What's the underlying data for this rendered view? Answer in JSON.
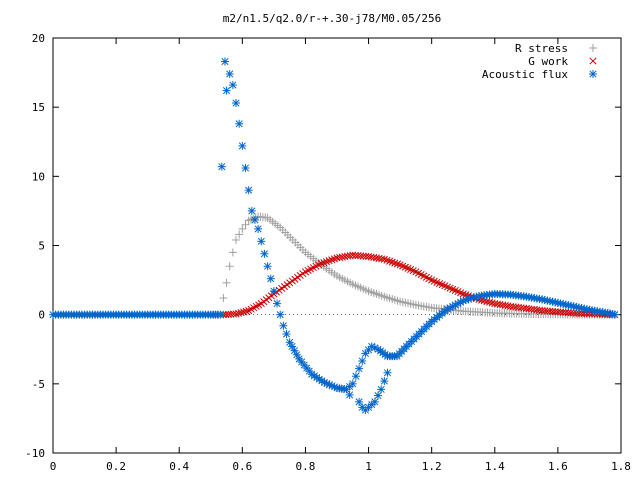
{
  "chart_data": {
    "type": "scatter",
    "title": "m2/n1.5/q2.0/r-+.30-j78/M0.05/256",
    "xlabel": "",
    "ylabel": "",
    "xlim": [
      0,
      1.8
    ],
    "ylim": [
      -10,
      20
    ],
    "x_ticks": [
      0,
      0.2,
      0.4,
      0.6,
      0.8,
      1,
      1.2,
      1.4,
      1.6,
      1.8
    ],
    "y_ticks": [
      -10,
      -5,
      0,
      5,
      10,
      15,
      20
    ],
    "x_tick_labels": [
      "0",
      "0.2",
      "0.4",
      "0.6",
      "0.8",
      "1",
      "1.2",
      "1.4",
      "1.6",
      "1.8"
    ],
    "y_tick_labels": [
      "-10",
      "-5",
      "0",
      "5",
      "10",
      "15",
      "20"
    ],
    "grid": false,
    "legend_position": "top-right",
    "series": [
      {
        "name": "R stress",
        "marker": "plus",
        "color": "#a0a0a0",
        "points": [
          [
            0.54,
            0.0
          ],
          [
            0.54,
            1.2
          ],
          [
            0.55,
            2.3
          ],
          [
            0.56,
            3.5
          ],
          [
            0.57,
            4.5
          ],
          [
            0.58,
            5.4
          ],
          [
            0.6,
            6.2
          ],
          [
            0.62,
            6.8
          ],
          [
            0.65,
            7.1
          ],
          [
            0.68,
            7.0
          ],
          [
            0.72,
            6.3
          ],
          [
            0.76,
            5.4
          ],
          [
            0.8,
            4.5
          ],
          [
            0.85,
            3.6
          ],
          [
            0.9,
            2.8
          ],
          [
            0.95,
            2.2
          ],
          [
            1.0,
            1.7
          ],
          [
            1.05,
            1.3
          ],
          [
            1.1,
            0.95
          ],
          [
            1.15,
            0.7
          ],
          [
            1.2,
            0.5
          ],
          [
            1.3,
            0.25
          ],
          [
            1.4,
            0.12
          ],
          [
            1.5,
            0.06
          ],
          [
            1.6,
            0.03
          ],
          [
            1.7,
            0.01
          ],
          [
            1.78,
            0.0
          ]
        ]
      },
      {
        "name": "G work",
        "marker": "cross",
        "color": "#cc0000",
        "points": [
          [
            0.54,
            0.0
          ],
          [
            0.58,
            0.05
          ],
          [
            0.62,
            0.3
          ],
          [
            0.66,
            0.8
          ],
          [
            0.7,
            1.5
          ],
          [
            0.75,
            2.3
          ],
          [
            0.8,
            3.1
          ],
          [
            0.85,
            3.7
          ],
          [
            0.9,
            4.1
          ],
          [
            0.95,
            4.3
          ],
          [
            1.0,
            4.2
          ],
          [
            1.05,
            4.0
          ],
          [
            1.1,
            3.6
          ],
          [
            1.15,
            3.1
          ],
          [
            1.2,
            2.5
          ],
          [
            1.25,
            2.0
          ],
          [
            1.3,
            1.5
          ],
          [
            1.35,
            1.1
          ],
          [
            1.4,
            0.8
          ],
          [
            1.45,
            0.6
          ],
          [
            1.5,
            0.45
          ],
          [
            1.55,
            0.3
          ],
          [
            1.6,
            0.2
          ],
          [
            1.65,
            0.12
          ],
          [
            1.7,
            0.06
          ],
          [
            1.75,
            0.02
          ],
          [
            1.78,
            0.0
          ]
        ]
      },
      {
        "name": "Acoustic flux",
        "marker": "star",
        "color": "#0066cc",
        "points": [
          [
            0.0,
            0.0
          ],
          [
            0.05,
            0.0
          ],
          [
            0.1,
            0.0
          ],
          [
            0.15,
            0.0
          ],
          [
            0.2,
            0.0
          ],
          [
            0.25,
            0.0
          ],
          [
            0.3,
            0.0
          ],
          [
            0.35,
            0.0
          ],
          [
            0.4,
            0.0
          ],
          [
            0.45,
            0.0
          ],
          [
            0.5,
            0.0
          ],
          [
            0.53,
            0.0
          ],
          [
            0.535,
            10.7
          ],
          [
            0.545,
            18.3
          ],
          [
            0.55,
            16.2
          ],
          [
            0.56,
            17.4
          ],
          [
            0.57,
            16.6
          ],
          [
            0.58,
            15.3
          ],
          [
            0.59,
            13.8
          ],
          [
            0.6,
            12.2
          ],
          [
            0.61,
            10.6
          ],
          [
            0.62,
            9.0
          ],
          [
            0.63,
            7.5
          ],
          [
            0.65,
            6.2
          ],
          [
            0.67,
            4.4
          ],
          [
            0.69,
            2.6
          ],
          [
            0.71,
            0.8
          ],
          [
            0.73,
            -0.8
          ],
          [
            0.75,
            -2.0
          ],
          [
            0.78,
            -3.2
          ],
          [
            0.82,
            -4.3
          ],
          [
            0.86,
            -4.9
          ],
          [
            0.9,
            -5.3
          ],
          [
            0.93,
            -5.4
          ],
          [
            0.95,
            -5.0
          ],
          [
            0.97,
            -3.9
          ],
          [
            0.99,
            -2.8
          ],
          [
            1.01,
            -2.3
          ],
          [
            1.03,
            -2.5
          ],
          [
            1.06,
            -3.0
          ],
          [
            1.09,
            -3.0
          ],
          [
            1.12,
            -2.3
          ],
          [
            1.16,
            -1.4
          ],
          [
            1.2,
            -0.5
          ],
          [
            1.25,
            0.4
          ],
          [
            1.3,
            1.0
          ],
          [
            1.35,
            1.35
          ],
          [
            1.4,
            1.5
          ],
          [
            1.45,
            1.45
          ],
          [
            1.5,
            1.3
          ],
          [
            1.55,
            1.1
          ],
          [
            1.6,
            0.85
          ],
          [
            1.65,
            0.6
          ],
          [
            1.7,
            0.35
          ],
          [
            1.75,
            0.15
          ],
          [
            1.78,
            0.0
          ],
          [
            0.97,
            -6.3
          ],
          [
            0.98,
            -6.7
          ],
          [
            0.99,
            -6.9
          ],
          [
            1.0,
            -6.7
          ],
          [
            1.02,
            -6.3
          ],
          [
            1.04,
            -5.4
          ],
          [
            1.06,
            -4.2
          ],
          [
            0.94,
            -5.8
          ]
        ]
      }
    ]
  }
}
